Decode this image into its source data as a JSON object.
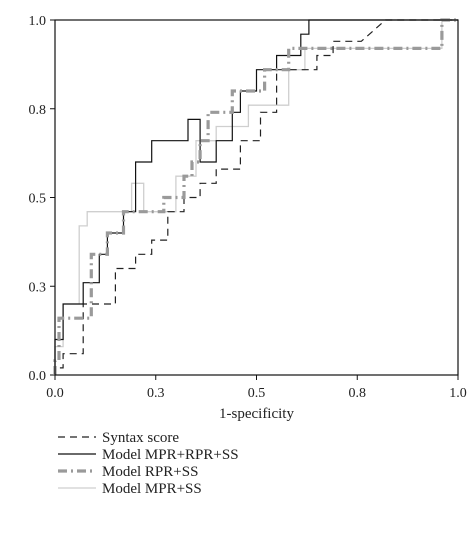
{
  "chart_data": {
    "type": "line",
    "xlabel": "1-specificity",
    "ylabel": "",
    "xlim": [
      0,
      1
    ],
    "ylim": [
      0,
      1
    ],
    "x_ticks": [
      "0.0",
      "0.3",
      "0.5",
      "0.8",
      "1.0"
    ],
    "x_tick_values": [
      0,
      0.25,
      0.5,
      0.75,
      1.0
    ],
    "y_ticks": [
      "0.0",
      "0.3",
      "0.5",
      "0.8",
      "1.0"
    ],
    "y_tick_values": [
      0,
      0.25,
      0.5,
      0.75,
      1.0
    ],
    "grid": false,
    "legend_position": "bottom",
    "series": [
      {
        "name": "Syntax score",
        "color": "#222222",
        "dash": "dash",
        "points": [
          [
            0,
            0
          ],
          [
            0,
            0.02
          ],
          [
            0.02,
            0.02
          ],
          [
            0.02,
            0.06
          ],
          [
            0.07,
            0.06
          ],
          [
            0.07,
            0.2
          ],
          [
            0.15,
            0.2
          ],
          [
            0.15,
            0.3
          ],
          [
            0.2,
            0.3
          ],
          [
            0.2,
            0.34
          ],
          [
            0.24,
            0.34
          ],
          [
            0.24,
            0.38
          ],
          [
            0.28,
            0.38
          ],
          [
            0.28,
            0.46
          ],
          [
            0.32,
            0.46
          ],
          [
            0.32,
            0.5
          ],
          [
            0.36,
            0.5
          ],
          [
            0.36,
            0.54
          ],
          [
            0.4,
            0.54
          ],
          [
            0.4,
            0.58
          ],
          [
            0.46,
            0.58
          ],
          [
            0.46,
            0.66
          ],
          [
            0.51,
            0.66
          ],
          [
            0.51,
            0.74
          ],
          [
            0.55,
            0.74
          ],
          [
            0.55,
            0.86
          ],
          [
            0.65,
            0.86
          ],
          [
            0.65,
            0.9
          ],
          [
            0.69,
            0.9
          ],
          [
            0.69,
            0.94
          ],
          [
            0.76,
            0.94
          ],
          [
            0.82,
            1.0
          ],
          [
            1.0,
            1.0
          ]
        ]
      },
      {
        "name": "Model MPR+RPR+SS",
        "color": "#111111",
        "dash": "solid",
        "points": [
          [
            0,
            0
          ],
          [
            0,
            0.1
          ],
          [
            0.02,
            0.1
          ],
          [
            0.02,
            0.2
          ],
          [
            0.07,
            0.2
          ],
          [
            0.07,
            0.26
          ],
          [
            0.11,
            0.26
          ],
          [
            0.11,
            0.34
          ],
          [
            0.13,
            0.34
          ],
          [
            0.13,
            0.4
          ],
          [
            0.17,
            0.4
          ],
          [
            0.17,
            0.46
          ],
          [
            0.2,
            0.46
          ],
          [
            0.2,
            0.6
          ],
          [
            0.24,
            0.6
          ],
          [
            0.24,
            0.66
          ],
          [
            0.33,
            0.66
          ],
          [
            0.33,
            0.72
          ],
          [
            0.36,
            0.72
          ],
          [
            0.36,
            0.6
          ],
          [
            0.4,
            0.6
          ],
          [
            0.4,
            0.66
          ],
          [
            0.44,
            0.66
          ],
          [
            0.44,
            0.74
          ],
          [
            0.46,
            0.74
          ],
          [
            0.46,
            0.8
          ],
          [
            0.5,
            0.8
          ],
          [
            0.5,
            0.86
          ],
          [
            0.55,
            0.86
          ],
          [
            0.55,
            0.9
          ],
          [
            0.61,
            0.9
          ],
          [
            0.61,
            0.96
          ],
          [
            0.63,
            0.96
          ],
          [
            0.63,
            1.0
          ],
          [
            1.0,
            1.0
          ]
        ]
      },
      {
        "name": "Model RPR+SS",
        "color": "#9a9a9a",
        "dash": "dashdot",
        "points": [
          [
            0,
            0
          ],
          [
            0,
            0.04
          ],
          [
            0.01,
            0.04
          ],
          [
            0.01,
            0.16
          ],
          [
            0.09,
            0.16
          ],
          [
            0.09,
            0.34
          ],
          [
            0.13,
            0.34
          ],
          [
            0.13,
            0.4
          ],
          [
            0.17,
            0.4
          ],
          [
            0.17,
            0.46
          ],
          [
            0.27,
            0.46
          ],
          [
            0.27,
            0.5
          ],
          [
            0.32,
            0.5
          ],
          [
            0.32,
            0.56
          ],
          [
            0.34,
            0.56
          ],
          [
            0.34,
            0.6
          ],
          [
            0.36,
            0.6
          ],
          [
            0.36,
            0.66
          ],
          [
            0.38,
            0.66
          ],
          [
            0.38,
            0.74
          ],
          [
            0.44,
            0.74
          ],
          [
            0.44,
            0.8
          ],
          [
            0.52,
            0.8
          ],
          [
            0.52,
            0.86
          ],
          [
            0.58,
            0.86
          ],
          [
            0.58,
            0.92
          ],
          [
            0.96,
            0.92
          ],
          [
            0.96,
            1.0
          ],
          [
            1.0,
            1.0
          ]
        ]
      },
      {
        "name": "Model MPR+SS",
        "color": "#cfcfcf",
        "dash": "solid",
        "points": [
          [
            0,
            0
          ],
          [
            0,
            0.08
          ],
          [
            0.02,
            0.08
          ],
          [
            0.02,
            0.2
          ],
          [
            0.06,
            0.2
          ],
          [
            0.06,
            0.42
          ],
          [
            0.08,
            0.42
          ],
          [
            0.08,
            0.46
          ],
          [
            0.19,
            0.46
          ],
          [
            0.19,
            0.54
          ],
          [
            0.22,
            0.54
          ],
          [
            0.22,
            0.46
          ],
          [
            0.3,
            0.46
          ],
          [
            0.3,
            0.56
          ],
          [
            0.35,
            0.56
          ],
          [
            0.35,
            0.66
          ],
          [
            0.4,
            0.66
          ],
          [
            0.4,
            0.7
          ],
          [
            0.48,
            0.7
          ],
          [
            0.48,
            0.76
          ],
          [
            0.58,
            0.76
          ],
          [
            0.58,
            0.86
          ],
          [
            0.62,
            0.86
          ],
          [
            0.62,
            0.92
          ],
          [
            0.96,
            0.92
          ],
          [
            0.96,
            1.0
          ],
          [
            1.0,
            1.0
          ]
        ]
      }
    ]
  }
}
